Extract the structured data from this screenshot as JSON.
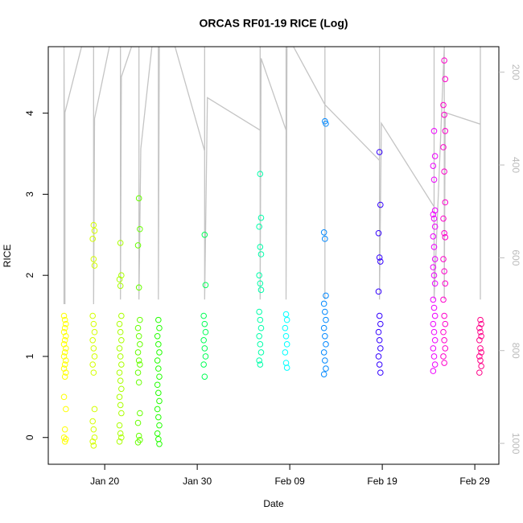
{
  "chart_data": {
    "type": "scatter",
    "title": "ORCAS RF01-19 RICE (Log)",
    "x_label": "Date",
    "y_label": "RICE",
    "xlim": [
      13.9,
      62.6
    ],
    "xticks": [
      {
        "value": 20,
        "label": "Jan 20"
      },
      {
        "value": 30,
        "label": "Jan 30"
      },
      {
        "value": 40,
        "label": "Feb 09"
      },
      {
        "value": 50,
        "label": "Feb 19"
      },
      {
        "value": 60,
        "label": "Feb 29"
      }
    ],
    "ylim": [
      -0.33,
      4.82
    ],
    "yticks": [
      0,
      1,
      2,
      3,
      4
    ],
    "y2lim": [
      1045,
      145
    ],
    "y2ticks": [
      200,
      400,
      600,
      800,
      1000
    ],
    "series": [
      {
        "color": "#FFFF00",
        "x": [
          15.6,
          15.7,
          15.8,
          15.7,
          15.6,
          15.8,
          15.7,
          15.6,
          15.8,
          15.7,
          15.6,
          15.8,
          15.7,
          15.6,
          15.8,
          15.7,
          15.6,
          15.8,
          15.7,
          15.6,
          15.8,
          15.7
        ],
        "values": [
          1.5,
          1.45,
          1.4,
          1.35,
          1.3,
          1.25,
          1.2,
          1.15,
          1.1,
          1.05,
          1.0,
          0.95,
          0.9,
          0.85,
          0.8,
          0.75,
          0.5,
          0.35,
          0.1,
          0.0,
          -0.02,
          -0.05
        ]
      },
      {
        "color": "#D4FF00",
        "x": [
          18.8,
          18.9,
          18.7,
          18.8,
          18.9,
          18.7,
          18.8,
          18.9,
          18.7,
          18.8,
          18.9,
          18.7,
          18.8,
          18.9,
          18.7,
          18.8,
          18.9,
          18.7,
          18.8
        ],
        "values": [
          2.62,
          2.55,
          2.45,
          2.2,
          2.12,
          1.5,
          1.4,
          1.3,
          1.2,
          1.1,
          1.0,
          0.9,
          0.8,
          0.35,
          0.2,
          0.1,
          0.0,
          -0.05,
          -0.1
        ]
      },
      {
        "color": "#AAFF00",
        "x": [
          21.7,
          21.8,
          21.6,
          21.7,
          21.8,
          21.6,
          21.7,
          21.8,
          21.6,
          21.7,
          21.8,
          21.6,
          21.7,
          21.8,
          21.6,
          21.7,
          21.8,
          21.6,
          21.7,
          21.8,
          21.6
        ],
        "values": [
          2.4,
          2.0,
          1.95,
          1.87,
          1.5,
          1.4,
          1.3,
          1.2,
          1.1,
          1.0,
          0.9,
          0.8,
          0.7,
          0.6,
          0.5,
          0.4,
          0.3,
          0.15,
          0.05,
          0.0,
          -0.05
        ]
      },
      {
        "color": "#66FF00",
        "x": [
          23.7,
          23.8,
          23.6,
          23.7,
          23.8,
          23.6,
          23.7,
          23.8,
          23.6,
          23.7,
          23.8,
          23.6,
          23.7,
          23.8,
          23.6,
          23.7,
          23.8,
          23.6
        ],
        "values": [
          2.95,
          2.57,
          2.37,
          1.85,
          1.45,
          1.35,
          1.25,
          1.15,
          1.05,
          0.95,
          0.9,
          0.8,
          0.68,
          0.3,
          0.18,
          0.02,
          -0.03,
          -0.06
        ]
      },
      {
        "color": "#22FF00",
        "x": [
          25.8,
          25.9,
          25.7,
          25.8,
          25.9,
          25.7,
          25.8,
          25.9,
          25.7,
          25.8,
          25.9,
          25.7,
          25.8,
          25.9,
          25.7,
          25.8,
          25.9
        ],
        "values": [
          1.45,
          1.35,
          1.25,
          1.15,
          1.05,
          0.95,
          0.85,
          0.75,
          0.65,
          0.55,
          0.45,
          0.35,
          0.25,
          0.15,
          0.05,
          -0.02,
          -0.08
        ]
      },
      {
        "color": "#00FF55",
        "x": [
          30.8,
          30.9,
          30.7,
          30.8,
          30.9,
          30.7,
          30.8,
          30.9,
          30.7,
          30.8
        ],
        "values": [
          2.5,
          1.88,
          1.5,
          1.4,
          1.3,
          1.2,
          1.1,
          1.0,
          0.9,
          0.75
        ]
      },
      {
        "color": "#00FFAA",
        "x": [
          36.8,
          36.9,
          36.7,
          36.8,
          36.9,
          36.7,
          36.8,
          36.9,
          36.7,
          36.8,
          36.9,
          36.7,
          36.8,
          36.9,
          36.7,
          36.8
        ],
        "values": [
          3.25,
          2.71,
          2.6,
          2.35,
          2.26,
          2.0,
          1.9,
          1.82,
          1.55,
          1.45,
          1.35,
          1.25,
          1.15,
          1.05,
          0.95,
          0.9
        ]
      },
      {
        "color": "#00FFFF",
        "x": [
          39.6,
          39.7,
          39.5,
          39.6,
          39.7,
          39.5,
          39.6,
          39.7
        ],
        "values": [
          1.52,
          1.45,
          1.35,
          1.25,
          1.15,
          1.05,
          0.92,
          0.86
        ]
      },
      {
        "color": "#0088FF",
        "x": [
          43.8,
          43.9,
          43.7,
          43.8,
          43.9,
          43.7,
          43.8,
          43.9,
          43.7,
          43.8,
          43.9,
          43.7,
          43.8,
          43.9,
          43.7
        ],
        "values": [
          3.9,
          3.87,
          2.53,
          2.45,
          1.75,
          1.65,
          1.55,
          1.45,
          1.35,
          1.25,
          1.15,
          1.05,
          0.95,
          0.85,
          0.78
        ]
      },
      {
        "color": "#3300FF",
        "x": [
          49.7,
          49.8,
          49.6,
          49.7,
          49.8,
          49.6,
          49.7,
          49.8,
          49.6,
          49.7,
          49.8,
          49.6,
          49.7,
          49.8
        ],
        "values": [
          3.52,
          2.87,
          2.52,
          2.22,
          2.17,
          1.8,
          1.5,
          1.4,
          1.3,
          1.2,
          1.1,
          1.0,
          0.9,
          0.8
        ]
      },
      {
        "color": "#EE00FF",
        "x": [
          55.6,
          55.7,
          55.5,
          55.6,
          55.7,
          55.5,
          55.6,
          55.7,
          55.5,
          55.6,
          55.7,
          55.5,
          55.6,
          55.7,
          55.5,
          55.6,
          55.7,
          55.5,
          55.6,
          55.7,
          55.5,
          55.6,
          55.7,
          55.5
        ],
        "values": [
          3.78,
          3.47,
          3.35,
          3.18,
          2.8,
          2.75,
          2.7,
          2.6,
          2.48,
          2.35,
          2.2,
          2.1,
          2.0,
          1.9,
          1.7,
          1.6,
          1.5,
          1.4,
          1.3,
          1.2,
          1.1,
          1.0,
          0.9,
          0.82
        ]
      },
      {
        "color": "#FF00CC",
        "x": [
          56.7,
          56.8,
          56.6,
          56.7,
          56.8,
          56.6,
          56.7,
          56.8,
          56.6,
          56.7,
          56.8,
          56.6,
          56.7,
          56.8,
          56.6,
          56.7,
          56.8,
          56.6,
          56.7,
          56.8,
          56.6,
          56.7
        ],
        "values": [
          4.65,
          4.42,
          4.1,
          3.98,
          3.78,
          3.58,
          3.28,
          2.9,
          2.7,
          2.52,
          2.47,
          2.2,
          2.05,
          1.9,
          1.7,
          1.5,
          1.4,
          1.3,
          1.2,
          1.1,
          1.0,
          0.92
        ]
      },
      {
        "color": "#FF0088",
        "x": [
          60.6,
          60.7,
          60.5,
          60.6,
          60.7,
          60.5,
          60.6,
          60.7,
          60.5,
          60.6,
          60.7,
          60.5
        ],
        "values": [
          1.45,
          1.4,
          1.35,
          1.3,
          1.25,
          1.2,
          1.1,
          1.05,
          1.0,
          0.95,
          0.88,
          0.8
        ]
      },
      {
        "type": "line",
        "axis": "y2",
        "color": "#c4c4c4",
        "x": [
          15.6,
          15.6,
          15.7,
          15.7,
          17.5,
          18.8,
          18.8,
          18.9,
          20.5,
          21.7,
          21.7,
          21.8,
          22.9,
          23.7,
          23.7,
          23.9,
          25.1,
          25.8,
          25.8,
          25.9,
          27.6,
          30.8,
          30.8,
          30.8,
          31.1,
          36.8,
          36.8,
          36.8,
          36.9,
          39.6,
          39.6,
          39.6,
          39.7,
          40.4,
          43.8,
          43.8,
          43.8,
          43.8,
          49.7,
          49.7,
          49.7,
          49.9,
          55.6,
          55.6,
          55.6,
          56.7,
          56.7,
          56.8,
          60.6,
          60.6,
          60.6
        ],
        "values": [
          700,
          145,
          700,
          287,
          145,
          145,
          700,
          300,
          145,
          145,
          690,
          210,
          145,
          145,
          690,
          365,
          145,
          145,
          690,
          145,
          145,
          370,
          145,
          690,
          255,
          325,
          145,
          690,
          170,
          325,
          145,
          690,
          145,
          145,
          270,
          145,
          690,
          270,
          390,
          145,
          690,
          310,
          490,
          145,
          690,
          145,
          690,
          287,
          312,
          145,
          690
        ]
      }
    ]
  }
}
